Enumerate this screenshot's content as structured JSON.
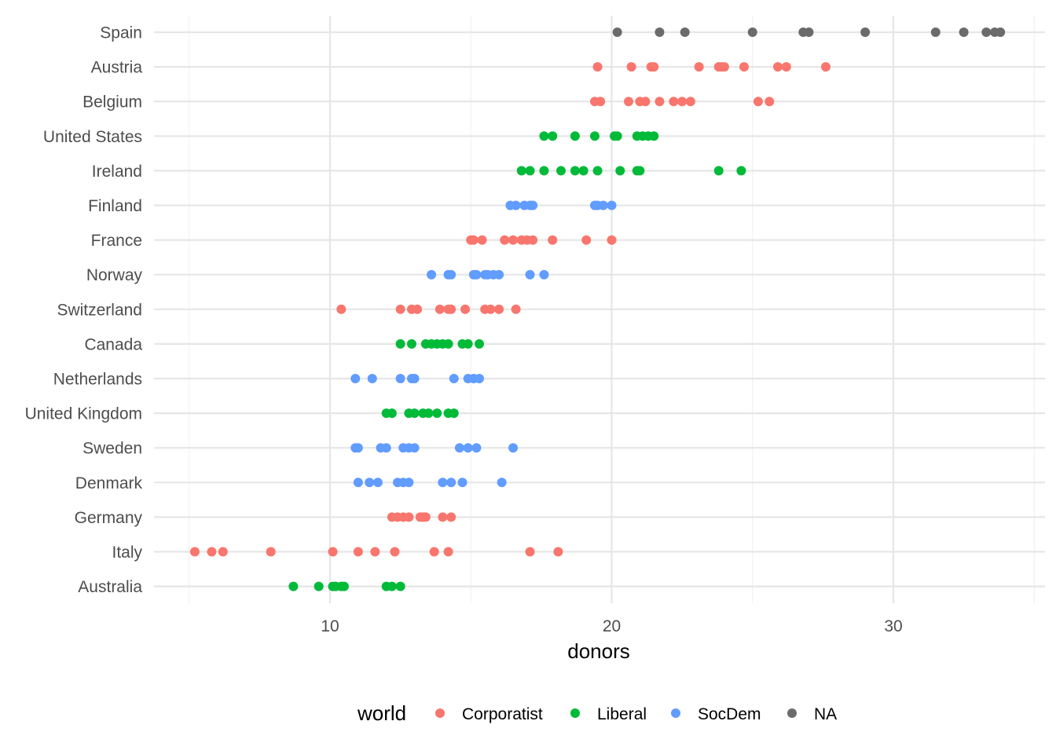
{
  "chart_data": {
    "type": "scatter",
    "xlabel": "donors",
    "ylabel": "",
    "xlim": [
      4.5,
      35.0
    ],
    "x_ticks": [
      10,
      20,
      30
    ],
    "x_tick_labels": [
      "10",
      "20",
      "30"
    ],
    "grid": true,
    "legend": {
      "title": "world",
      "placement": "bottom",
      "entries": [
        {
          "name": "Corporatist",
          "color": "#F8766D"
        },
        {
          "name": "Liberal",
          "color": "#00BA38"
        },
        {
          "name": "SocDem",
          "color": "#619CFF"
        },
        {
          "name": "NA",
          "color": "#6B6B6B"
        }
      ]
    },
    "categories": [
      "Spain",
      "Austria",
      "Belgium",
      "United States",
      "Ireland",
      "Finland",
      "France",
      "Norway",
      "Switzerland",
      "Canada",
      "Netherlands",
      "United Kingdom",
      "Sweden",
      "Denmark",
      "Germany",
      "Italy",
      "Australia"
    ],
    "series": [
      {
        "name": "Corporatist",
        "color": "#F8766D",
        "points": [
          {
            "country": "Austria",
            "values": [
              19.5,
              20.7,
              21.4,
              21.5,
              23.1,
              23.8,
              23.9,
              24.0,
              24.7,
              25.9,
              26.2,
              27.6
            ]
          },
          {
            "country": "Belgium",
            "values": [
              19.4,
              19.6,
              20.6,
              21.0,
              21.2,
              21.7,
              22.2,
              22.5,
              22.8,
              25.2,
              25.6
            ]
          },
          {
            "country": "France",
            "values": [
              15.0,
              15.1,
              15.4,
              16.2,
              16.5,
              16.8,
              17.0,
              17.2,
              17.9,
              19.1,
              20.0
            ]
          },
          {
            "country": "Switzerland",
            "values": [
              10.4,
              12.5,
              12.9,
              13.1,
              13.9,
              14.2,
              14.3,
              14.8,
              15.5,
              15.7,
              16.0,
              16.6
            ]
          },
          {
            "country": "Germany",
            "values": [
              12.2,
              12.4,
              12.6,
              12.8,
              13.2,
              13.4,
              13.3,
              14.0,
              14.3
            ]
          },
          {
            "country": "Italy",
            "values": [
              5.2,
              5.8,
              6.2,
              7.9,
              10.1,
              11.0,
              11.6,
              12.3,
              13.7,
              14.2,
              17.1,
              18.1
            ]
          }
        ]
      },
      {
        "name": "Liberal",
        "color": "#00BA38",
        "points": [
          {
            "country": "United States",
            "values": [
              17.6,
              17.9,
              18.7,
              19.4,
              20.1,
              20.2,
              20.9,
              21.1,
              21.3,
              21.5
            ]
          },
          {
            "country": "Ireland",
            "values": [
              16.8,
              17.1,
              17.6,
              18.2,
              18.7,
              19.0,
              19.5,
              20.3,
              20.9,
              21.0,
              23.8,
              24.6
            ]
          },
          {
            "country": "Canada",
            "values": [
              12.5,
              12.9,
              13.4,
              13.6,
              13.8,
              14.0,
              14.2,
              14.7,
              14.9,
              15.3
            ]
          },
          {
            "country": "United Kingdom",
            "values": [
              12.0,
              12.2,
              12.8,
              13.0,
              13.3,
              13.5,
              13.8,
              14.2,
              14.4
            ]
          },
          {
            "country": "Australia",
            "values": [
              8.7,
              9.6,
              10.1,
              10.2,
              10.4,
              10.5,
              12.0,
              12.2,
              12.5
            ]
          }
        ]
      },
      {
        "name": "SocDem",
        "color": "#619CFF",
        "points": [
          {
            "country": "Finland",
            "values": [
              16.4,
              16.6,
              16.9,
              17.1,
              17.2,
              19.4,
              19.5,
              19.7,
              20.0
            ]
          },
          {
            "country": "Norway",
            "values": [
              13.6,
              14.2,
              14.3,
              15.1,
              15.2,
              15.5,
              15.6,
              15.8,
              16.0,
              17.1,
              17.6
            ]
          },
          {
            "country": "Netherlands",
            "values": [
              10.9,
              11.5,
              12.5,
              12.9,
              13.0,
              14.4,
              14.9,
              15.1,
              15.3
            ]
          },
          {
            "country": "Sweden",
            "values": [
              10.9,
              11.0,
              11.8,
              12.0,
              12.6,
              12.8,
              13.0,
              14.6,
              14.9,
              15.2,
              16.5
            ]
          },
          {
            "country": "Denmark",
            "values": [
              11.0,
              11.4,
              11.7,
              12.4,
              12.6,
              12.8,
              14.0,
              14.3,
              14.7,
              16.1
            ]
          }
        ]
      },
      {
        "name": "NA",
        "color": "#6B6B6B",
        "points": [
          {
            "country": "Spain",
            "values": [
              20.2,
              21.7,
              22.6,
              25.0,
              26.8,
              27.0,
              29.0,
              31.5,
              32.5,
              33.3,
              33.6,
              33.8
            ]
          }
        ]
      }
    ]
  }
}
